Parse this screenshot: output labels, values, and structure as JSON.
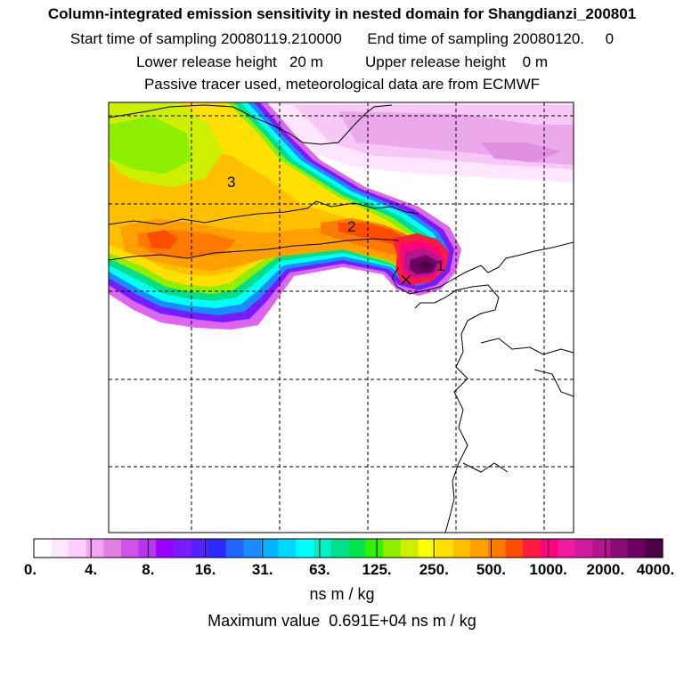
{
  "title": "Column-integrated emission sensitivity in nested domain for Shangdianzi_200801",
  "sampling_line": "Start time of sampling 20080119.210000      End time of sampling 20080120.     0",
  "release_line": "Lower release height   20 m          Upper release height    0 m",
  "tracer_line": "Passive tracer used, meteorological data are from ECMWF",
  "map_labels": [
    "1",
    "2",
    "3"
  ],
  "colorbar": {
    "colors": [
      "#ffffff",
      "#ffe6ff",
      "#ffccff",
      "#f2a6f2",
      "#df7fdf",
      "#cc55e6",
      "#b833f2",
      "#9900ff",
      "#7a1aff",
      "#5522ff",
      "#2a2aff",
      "#2266ff",
      "#1a8cff",
      "#00b3ff",
      "#00d9ff",
      "#00ffff",
      "#00f0c8",
      "#00e08c",
      "#00e650",
      "#33f000",
      "#8cf000",
      "#ccf000",
      "#ffff00",
      "#ffe000",
      "#ffc000",
      "#ffa000",
      "#ff7a00",
      "#ff4d00",
      "#ff1a40",
      "#ff0080",
      "#f01aa0",
      "#d21aa0",
      "#b4148c",
      "#8c0a78",
      "#6e0064",
      "#4b0046"
    ],
    "tick_labels": [
      "0.",
      "4.",
      "8.",
      "16.",
      "31.",
      "63.",
      "125.",
      "250.",
      "500.",
      "1000.",
      "2000.",
      "4000."
    ]
  },
  "unit_label": "ns m / kg",
  "max_value_line": "Maximum value  0.691E+04 ns m / kg"
}
